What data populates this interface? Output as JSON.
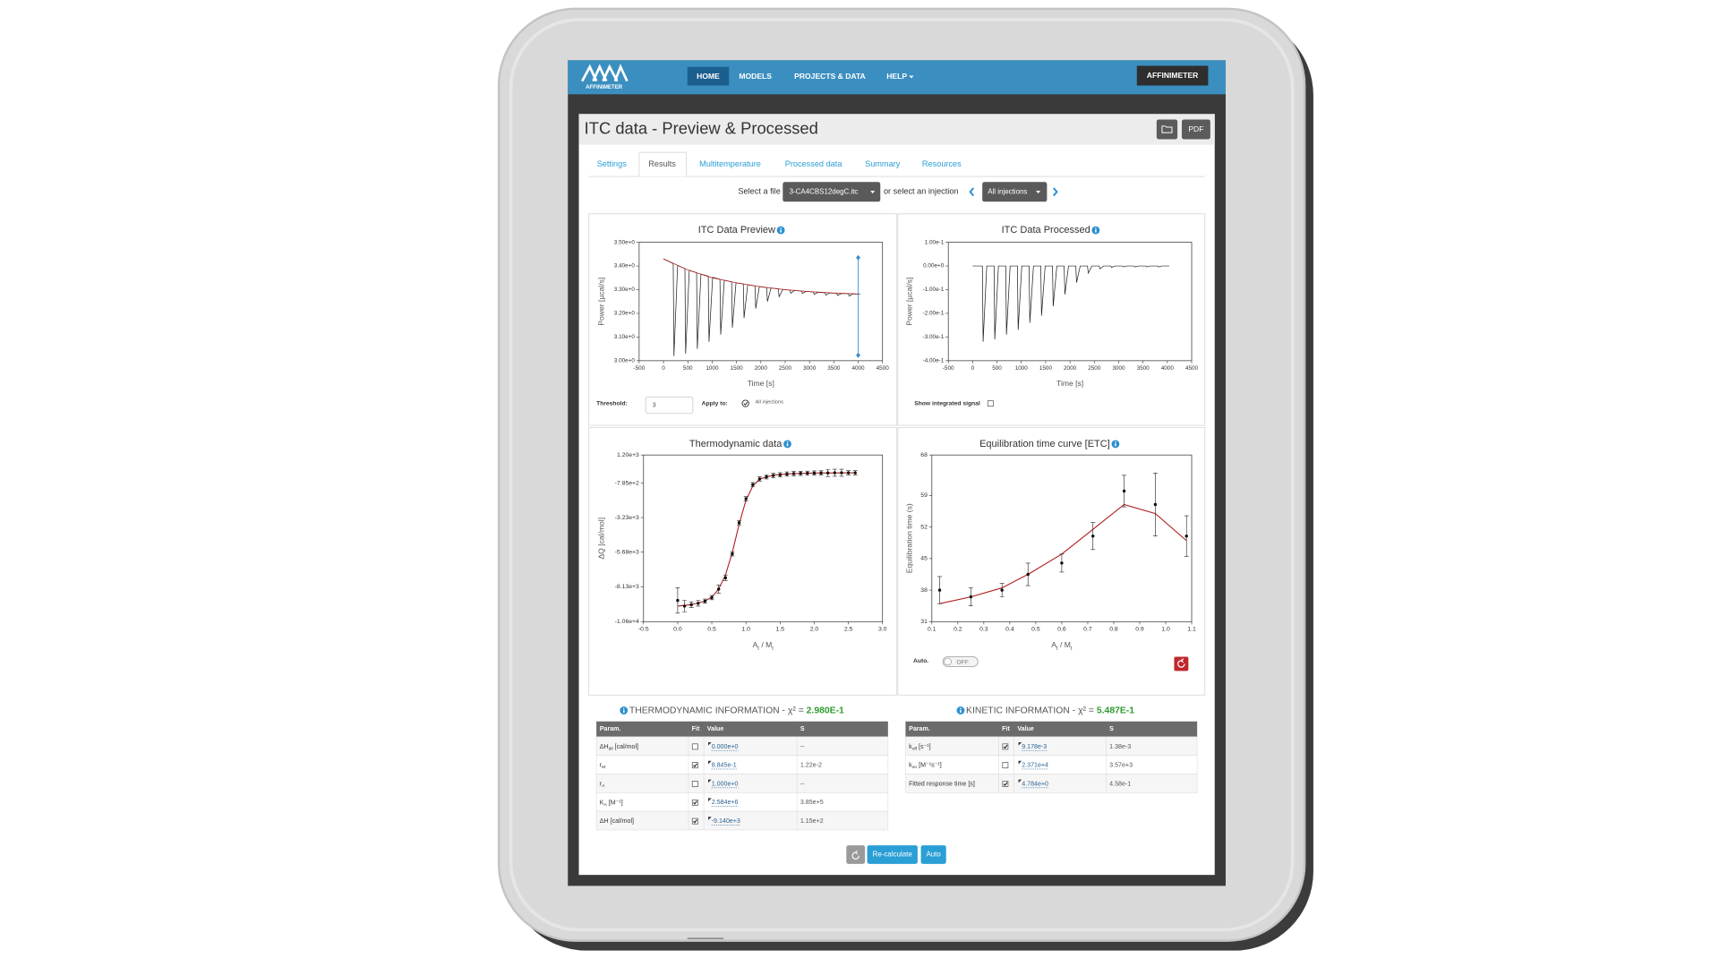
{
  "nav": {
    "brand": "AFFINIMETER",
    "items": [
      "HOME",
      "MODELS",
      "PROJECTS & DATA",
      "HELP"
    ],
    "active": "HOME",
    "account": "AFFINIMETER"
  },
  "header": {
    "title": "ITC data - Preview & Processed",
    "pdf": "PDF"
  },
  "tabs": {
    "items": [
      "Settings",
      "Results",
      "Multitemperature",
      "Processed data",
      "Summary",
      "Resources"
    ],
    "active": "Results"
  },
  "file_select": {
    "label": "Select a file",
    "file": "3-CA4CBS12degC.itc",
    "or_label": "or select an injection",
    "injection": "All injections"
  },
  "charts": [
    {
      "type": "line",
      "title": "ITC Data Preview",
      "xlabel": "Time [s]",
      "ylabel": "Power [µcal/s]",
      "xlim": [
        -500,
        4500
      ],
      "ylim": [
        3.0,
        3.5
      ],
      "xticks": [
        -500,
        0,
        500,
        1000,
        1500,
        2000,
        2500,
        3000,
        3500,
        4000,
        4500
      ],
      "yticks": [
        {
          "value": 3.0,
          "label": "3.00e+0"
        },
        {
          "value": 3.1,
          "label": "3.10e+0"
        },
        {
          "value": 3.2,
          "label": "3.20e+0"
        },
        {
          "value": 3.3,
          "label": "3.30e+0"
        },
        {
          "value": 3.4,
          "label": "3.40e+0"
        },
        {
          "value": 3.5,
          "label": "3.50e+0"
        }
      ],
      "series": [
        {
          "mode": "line",
          "color": "#222222",
          "x": [
            0,
            200,
            215,
            290,
            440,
            455,
            530,
            680,
            695,
            770,
            920,
            935,
            1010,
            1160,
            1175,
            1250,
            1400,
            1415,
            1490,
            1640,
            1655,
            1730,
            1880,
            1895,
            1970,
            2120,
            2135,
            2210,
            2360,
            2375,
            2450,
            2600,
            2615,
            2690,
            2840,
            2855,
            2930,
            3080,
            3095,
            3170,
            3320,
            3335,
            3410,
            3560,
            3575,
            3650,
            3800,
            3815,
            3890,
            4040
          ],
          "values": [
            3.43,
            3.41,
            3.02,
            3.402,
            3.389,
            3.03,
            3.382,
            3.372,
            3.05,
            3.366,
            3.357,
            3.08,
            3.352,
            3.344,
            3.11,
            3.34,
            3.333,
            3.14,
            3.329,
            3.324,
            3.18,
            3.321,
            3.316,
            3.22,
            3.313,
            3.309,
            3.25,
            3.307,
            3.303,
            3.27,
            3.301,
            3.298,
            3.285,
            3.297,
            3.294,
            3.284,
            3.293,
            3.29,
            3.28,
            3.289,
            3.287,
            3.277,
            3.286,
            3.285,
            3.275,
            3.284,
            3.283,
            3.273,
            3.282,
            3.281
          ]
        },
        {
          "mode": "line",
          "color": "#b01c1c",
          "x": [
            0,
            500,
            1000,
            1500,
            2000,
            2500,
            3000,
            3500,
            4000
          ],
          "values": [
            3.43,
            3.383,
            3.35,
            3.329,
            3.312,
            3.3,
            3.292,
            3.286,
            3.282
          ]
        }
      ],
      "marker_x": 4000,
      "marker_color": "#3a8fd0"
    },
    {
      "type": "line",
      "title": "ITC Data Processed",
      "xlabel": "Time [s]",
      "ylabel": "Power [µcal/s]",
      "xlim": [
        -500,
        4500
      ],
      "ylim": [
        -0.4,
        0.1
      ],
      "xticks": [
        -500,
        0,
        500,
        1000,
        1500,
        2000,
        2500,
        3000,
        3500,
        4000,
        4500
      ],
      "yticks": [
        {
          "value": -0.4,
          "label": "-4.00e-1"
        },
        {
          "value": -0.3,
          "label": "-3.00e-1"
        },
        {
          "value": -0.2,
          "label": "-2.00e-1"
        },
        {
          "value": -0.1,
          "label": "-1.00e-1"
        },
        {
          "value": 0,
          "label": "0.00e+0"
        },
        {
          "value": 0.1,
          "label": "1.00e-1"
        }
      ],
      "series": [
        {
          "mode": "line",
          "color": "#222222",
          "x": [
            0,
            200,
            215,
            290,
            440,
            455,
            530,
            680,
            695,
            770,
            920,
            935,
            1010,
            1160,
            1175,
            1250,
            1400,
            1415,
            1490,
            1640,
            1655,
            1730,
            1880,
            1895,
            1970,
            2120,
            2135,
            2210,
            2360,
            2375,
            2450,
            2600,
            2615,
            2690,
            2840,
            2855,
            2930,
            3080,
            3095,
            3170,
            3320,
            3335,
            3410,
            3560,
            3575,
            3650,
            3800,
            3815,
            3890,
            4040
          ],
          "values": [
            0,
            0,
            -0.32,
            0,
            0,
            -0.31,
            0,
            0,
            -0.29,
            0,
            0,
            -0.27,
            0,
            0,
            -0.24,
            0,
            0,
            -0.21,
            0,
            0,
            -0.17,
            0,
            0,
            -0.12,
            0,
            0,
            -0.07,
            0,
            0,
            -0.03,
            0,
            0,
            -0.012,
            0,
            0,
            -0.006,
            0,
            0,
            -0.004,
            0,
            0,
            -0.004,
            0,
            0,
            -0.004,
            0,
            0,
            -0.004,
            0,
            0
          ]
        }
      ]
    },
    {
      "type": "scatter",
      "title": "Thermodynamic data",
      "xlabel": [
        {
          "text": "A"
        },
        {
          "text": "t",
          "sub": true
        },
        {
          "text": " / M"
        },
        {
          "text": "t",
          "sub": true
        }
      ],
      "ylabel": "ΔQ [cal/mol]",
      "xlim": [
        -0.5,
        3.0
      ],
      "ylim": [
        -10600,
        1200
      ],
      "xticks": [
        -0.5,
        {
          "value": 0,
          "label": "0.0"
        },
        0.5,
        {
          "value": 1,
          "label": "1.0"
        },
        1.5,
        {
          "value": 2,
          "label": "2.0"
        },
        2.5,
        {
          "value": 3,
          "label": "3.0"
        }
      ],
      "yticks": [
        {
          "value": -10600,
          "label": "-1.06e+4"
        },
        {
          "value": -8130,
          "label": "-8.13e+3"
        },
        {
          "value": -5680,
          "label": "-5.68e+3"
        },
        {
          "value": -3230,
          "label": "-3.23e+3"
        },
        {
          "value": -785,
          "label": "-7.85e+2"
        },
        {
          "value": 1200,
          "label": "1.20e+3"
        }
      ],
      "series": [
        {
          "mode": "line",
          "color": "#b01c1c",
          "x": [
            0,
            0.2,
            0.4,
            0.5,
            0.6,
            0.7,
            0.8,
            0.9,
            1.0,
            1.1,
            1.2,
            1.4,
            1.6,
            2.0,
            2.6
          ],
          "values": [
            -9500,
            -9400,
            -9150,
            -8850,
            -8300,
            -7300,
            -5700,
            -3700,
            -2000,
            -1000,
            -500,
            -230,
            -140,
            -80,
            -60
          ]
        },
        {
          "mode": "points",
          "color": "#111111",
          "x": [
            0,
            0.1,
            0.2,
            0.3,
            0.4,
            0.5,
            0.6,
            0.7,
            0.8,
            0.9,
            1.0,
            1.1,
            1.2,
            1.3,
            1.4,
            1.5,
            1.6,
            1.7,
            1.8,
            1.9,
            2.0,
            2.1,
            2.2,
            2.3,
            2.4,
            2.5,
            2.6
          ],
          "values": [
            -9100,
            -9500,
            -9400,
            -9300,
            -9150,
            -8900,
            -8300,
            -7500,
            -5800,
            -3600,
            -1900,
            -900,
            -500,
            -350,
            -250,
            -200,
            -150,
            -120,
            -100,
            -90,
            -80,
            -70,
            -70,
            -60,
            -60,
            -60,
            -60
          ],
          "errors": [
            900,
            400,
            200,
            200,
            150,
            150,
            300,
            200,
            150,
            150,
            150,
            150,
            150,
            150,
            150,
            150,
            150,
            150,
            150,
            150,
            150,
            150,
            250,
            250,
            250,
            150,
            150
          ]
        }
      ]
    },
    {
      "type": "scatter",
      "title": "Equilibration time curve [ETC]",
      "xlabel": [
        {
          "text": "A"
        },
        {
          "text": "t",
          "sub": true
        },
        {
          "text": " / M"
        },
        {
          "text": "t",
          "sub": true
        }
      ],
      "ylabel": "Equilibration time (s)",
      "xlim": [
        0.1,
        1.1
      ],
      "ylim": [
        31,
        68
      ],
      "xticks": [
        0.1,
        0.2,
        0.3,
        0.4,
        0.5,
        0.6,
        0.7,
        0.8,
        0.9,
        {
          "value": 1,
          "label": "1.0"
        },
        1.1
      ],
      "yticks": [
        31,
        38,
        45,
        52,
        59,
        68
      ],
      "series": [
        {
          "mode": "line",
          "color": "#b01c1c",
          "x": [
            0.13,
            0.25,
            0.37,
            0.47,
            0.6,
            0.72,
            0.84,
            0.96,
            1.08
          ],
          "values": [
            35,
            36.5,
            38.5,
            41.5,
            46,
            51.5,
            57,
            55,
            49
          ]
        },
        {
          "mode": "points",
          "color": "#111111",
          "x": [
            0.13,
            0.25,
            0.37,
            0.47,
            0.6,
            0.72,
            0.84,
            0.96,
            1.08
          ],
          "values": [
            38,
            36.5,
            38,
            41.5,
            44,
            50,
            60,
            57,
            50
          ],
          "errors": [
            3,
            2,
            1.5,
            2.5,
            2,
            3,
            3.5,
            7,
            4.5
          ]
        }
      ]
    }
  ],
  "preview_controls": {
    "threshold_label": "Threshold:",
    "threshold": "3",
    "apply_label": "Apply to:",
    "apply_option": "All injections"
  },
  "processed_controls": {
    "label": "Show integrated signal"
  },
  "etc_controls": {
    "label": "Auto.",
    "toggle": "OFF"
  },
  "thermo_info": {
    "title": "THERMODYNAMIC INFORMATION - χ² = ",
    "chi2": "2.980E-1",
    "columns": [
      "Param.",
      "Fit",
      "Value",
      "S"
    ],
    "rows": [
      {
        "param": [
          {
            "text": "ΔH"
          },
          {
            "text": "dil",
            "sub": true
          },
          {
            "text": " [cal/mol]"
          }
        ],
        "fit": false,
        "value": "0.000e+0",
        "s": "--"
      },
      {
        "param": [
          {
            "text": "r"
          },
          {
            "text": "M",
            "sub": true
          }
        ],
        "fit": true,
        "value": "8.845e-1",
        "s": "1.22e-2"
      },
      {
        "param": [
          {
            "text": "r"
          },
          {
            "text": "A",
            "sub": true
          }
        ],
        "fit": false,
        "value": "1.000e+0",
        "s": "--"
      },
      {
        "param": [
          {
            "text": "K"
          },
          {
            "text": "A",
            "sub": true
          },
          {
            "text": " [M⁻¹]"
          }
        ],
        "fit": true,
        "value": "2.584e+6",
        "s": "3.85e+5"
      },
      {
        "param": [
          {
            "text": "ΔH [cal/mol]"
          }
        ],
        "fit": true,
        "value": "-9.140e+3",
        "s": "1.15e+2"
      }
    ]
  },
  "kinetic_info": {
    "title": "KINETIC INFORMATION - χ² = ",
    "chi2": "5.487E-1",
    "columns": [
      "Param.",
      "Fit",
      "Value",
      "S"
    ],
    "rows": [
      {
        "param": [
          {
            "text": "k"
          },
          {
            "text": "off",
            "sub": true
          },
          {
            "text": " [s⁻¹]"
          }
        ],
        "fit": true,
        "value": "9.178e-3",
        "s": "1.38e-3"
      },
      {
        "param": [
          {
            "text": "k"
          },
          {
            "text": "on",
            "sub": true
          },
          {
            "text": " [M⁻¹s⁻¹]"
          }
        ],
        "fit": false,
        "value": "2.371e+4",
        "s": "3.57e+3"
      },
      {
        "param": [
          {
            "text": "Fitted response time [s]"
          }
        ],
        "fit": true,
        "value": "4.784e+0",
        "s": "4.58e-1"
      }
    ]
  },
  "actions": {
    "recalculate": "Re-calculate",
    "auto": "Auto"
  }
}
